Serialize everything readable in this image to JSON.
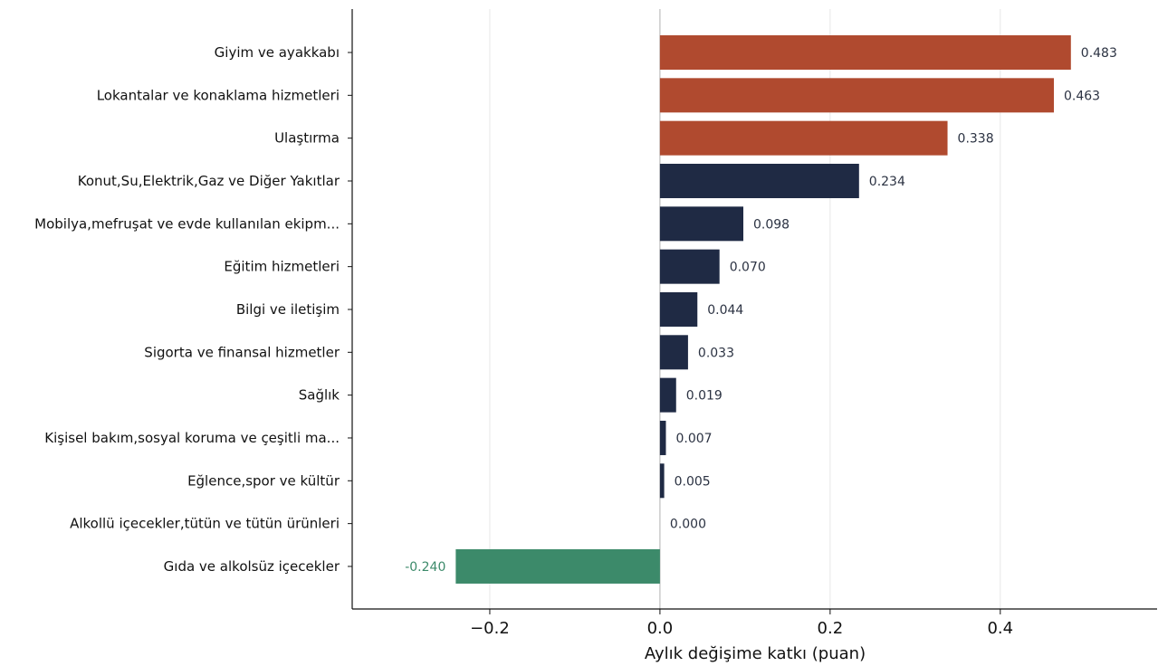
{
  "chart_data": {
    "type": "bar",
    "orientation": "horizontal",
    "xlabel": "Aylık değişime katkı (puan)",
    "ylabel": "",
    "xlim": [
      -0.3617,
      0.5843
    ],
    "xticks": [
      -0.2,
      0.0,
      0.2,
      0.4
    ],
    "xtick_labels": [
      "−0.2",
      "0.0",
      "0.2",
      "0.4"
    ],
    "grid": "vertical",
    "categories": [
      "Giyim ve ayakkabı",
      "Lokantalar ve konaklama hizmetleri",
      "Ulaştırma",
      "Konut,Su,Elektrik,Gaz ve Diğer Yakıtlar",
      "Mobilya,mefruşat ve evde kullanılan ekipm...",
      "Eğitim hizmetleri",
      "Bilgi ve iletişim",
      "Sigorta ve finansal hizmetler",
      "Sağlık",
      "Kişisel bakım,sosyal koruma ve çeşitli ma...",
      "Eğlence,spor ve kültür",
      "Alkollü içecekler,tütün ve tütün ürünleri",
      "Gıda ve alkolsüz içecekler"
    ],
    "values": [
      0.483,
      0.463,
      0.338,
      0.234,
      0.098,
      0.07,
      0.044,
      0.033,
      0.019,
      0.007,
      0.005,
      0.0,
      -0.24
    ],
    "value_labels": [
      "0.483",
      "0.463",
      "0.338",
      "0.234",
      "0.098",
      "0.070",
      "0.044",
      "0.033",
      "0.019",
      "0.007",
      "0.005",
      "0.000",
      "-0.240"
    ],
    "bar_colors": [
      "#b04a2f",
      "#b04a2f",
      "#b04a2f",
      "#1f2a44",
      "#1f2a44",
      "#1f2a44",
      "#1f2a44",
      "#1f2a44",
      "#1f2a44",
      "#1f2a44",
      "#1f2a44",
      "#1f2a44",
      "#3c8a6a"
    ],
    "colors": {
      "top": "#b04a2f",
      "positive": "#1f2a44",
      "negative": "#3c8a6a",
      "grid": "#e6e6e6",
      "zero_line": "#bdbdbd",
      "axis": "#111111"
    }
  }
}
